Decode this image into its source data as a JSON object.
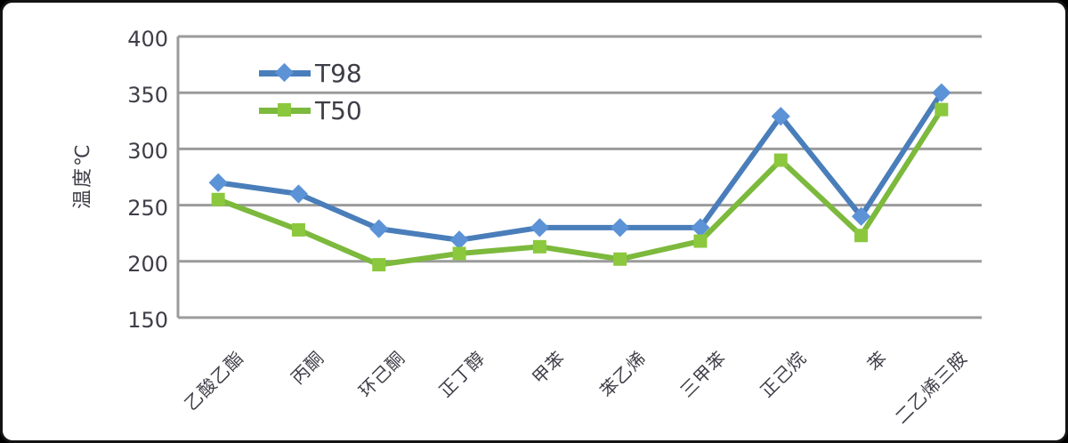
{
  "accent_colors": {
    "grid": "#9B9B9B",
    "text": "#3E3E48",
    "frame_border": "#141414"
  },
  "y_axis": {
    "title": "温度℃",
    "ticks": [
      400,
      350,
      300,
      250,
      200,
      150
    ]
  },
  "chart_data": {
    "type": "line",
    "title": "",
    "xlabel": "",
    "ylabel": "温度℃",
    "categories": [
      "乙酸乙酯",
      "丙酮",
      "环己酮",
      "正丁醇",
      "甲苯",
      "苯乙烯",
      "三甲苯",
      "正己烷",
      "苯",
      "二乙烯三胺"
    ],
    "series": [
      {
        "name": "T98",
        "marker": "diamond",
        "color": "#4A7EBA",
        "marker_color": "#5C93D6",
        "values": [
          270,
          260,
          229,
          219,
          230,
          230,
          230,
          329,
          240,
          350
        ]
      },
      {
        "name": "T50",
        "marker": "square",
        "color": "#7CB93C",
        "marker_color": "#8CC83E",
        "values": [
          255,
          228,
          197,
          207,
          213,
          202,
          218,
          290,
          223,
          335
        ]
      }
    ],
    "ylim": [
      150,
      400
    ],
    "ytick_step": 50,
    "grid": true,
    "legend_position": "top-left-inside"
  }
}
